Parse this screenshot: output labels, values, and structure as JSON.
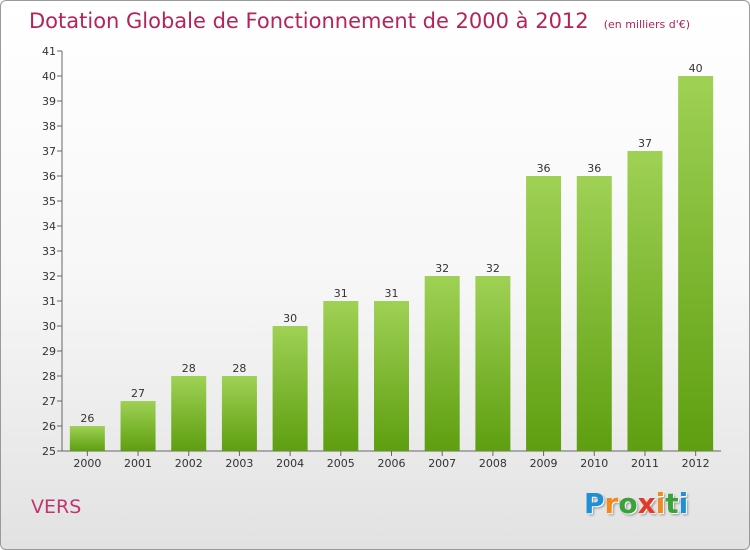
{
  "chart_data": {
    "type": "bar",
    "title": "Dotation Globale de Fonctionnement de 2000 à 2012",
    "subtitle": "(en milliers d'€)",
    "categories": [
      "2000",
      "2001",
      "2002",
      "2003",
      "2004",
      "2005",
      "2006",
      "2007",
      "2008",
      "2009",
      "2010",
      "2011",
      "2012"
    ],
    "values": [
      26,
      27,
      28,
      28,
      30,
      31,
      31,
      32,
      32,
      36,
      36,
      37,
      40
    ],
    "ylim": [
      25,
      41
    ],
    "yticks": [
      25,
      26,
      27,
      28,
      29,
      30,
      31,
      32,
      33,
      34,
      35,
      36,
      37,
      38,
      39,
      40,
      41
    ],
    "xlabel": "",
    "ylabel": "",
    "grid": false,
    "colors": {
      "bar_top": "#9fd155",
      "bar_bottom": "#5e9e10",
      "axis": "#666666",
      "label": "#333333"
    }
  },
  "commune": "VERS",
  "brand": {
    "letters": [
      "P",
      "r",
      "o",
      "x",
      "i",
      "t",
      "i"
    ]
  }
}
